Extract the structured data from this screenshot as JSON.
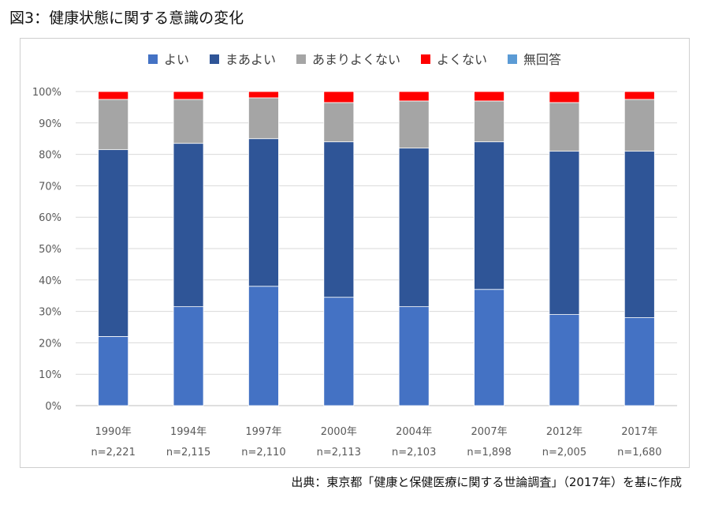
{
  "figure": {
    "title": "図3：健康状態に関する意識の変化",
    "source": "出典：東京都「健康と保健医療に関する世論調査」（2017年）を基に作成"
  },
  "chart_data": {
    "type": "bar",
    "stacked": true,
    "title": "図3：健康状態に関する意識の変化",
    "categories": [
      "1990年",
      "1994年",
      "1997年",
      "2000年",
      "2004年",
      "2007年",
      "2012年",
      "2017年"
    ],
    "sample_sizes": [
      "n=2,221",
      "n=2,115",
      "n=2,110",
      "n=2,113",
      "n=2,103",
      "n=1,898",
      "n=2,005",
      "n=1,680"
    ],
    "series": [
      {
        "name": "よい",
        "color": "#4472C4",
        "values": [
          22,
          31.5,
          38,
          34.5,
          31.5,
          37,
          29,
          28
        ]
      },
      {
        "name": "まあよい",
        "color": "#2F5597",
        "values": [
          59.5,
          52,
          47,
          49.5,
          50.5,
          47,
          52,
          53
        ]
      },
      {
        "name": "あまりよくない",
        "color": "#A5A5A5",
        "values": [
          16,
          14,
          13,
          12.5,
          15,
          13,
          15.5,
          16.5
        ]
      },
      {
        "name": "よくない",
        "color": "#FF0000",
        "values": [
          2.5,
          2.5,
          2,
          3.5,
          3,
          3,
          3.5,
          2.5
        ]
      },
      {
        "name": "無回答",
        "color": "#5B9BD5",
        "values": [
          0,
          0,
          0,
          0,
          0,
          0,
          0,
          0
        ]
      }
    ],
    "yticks": [
      "0%",
      "10%",
      "20%",
      "30%",
      "40%",
      "50%",
      "60%",
      "70%",
      "80%",
      "90%",
      "100%"
    ],
    "ylim": [
      0,
      100
    ],
    "grid": true,
    "legend_position": "top"
  }
}
